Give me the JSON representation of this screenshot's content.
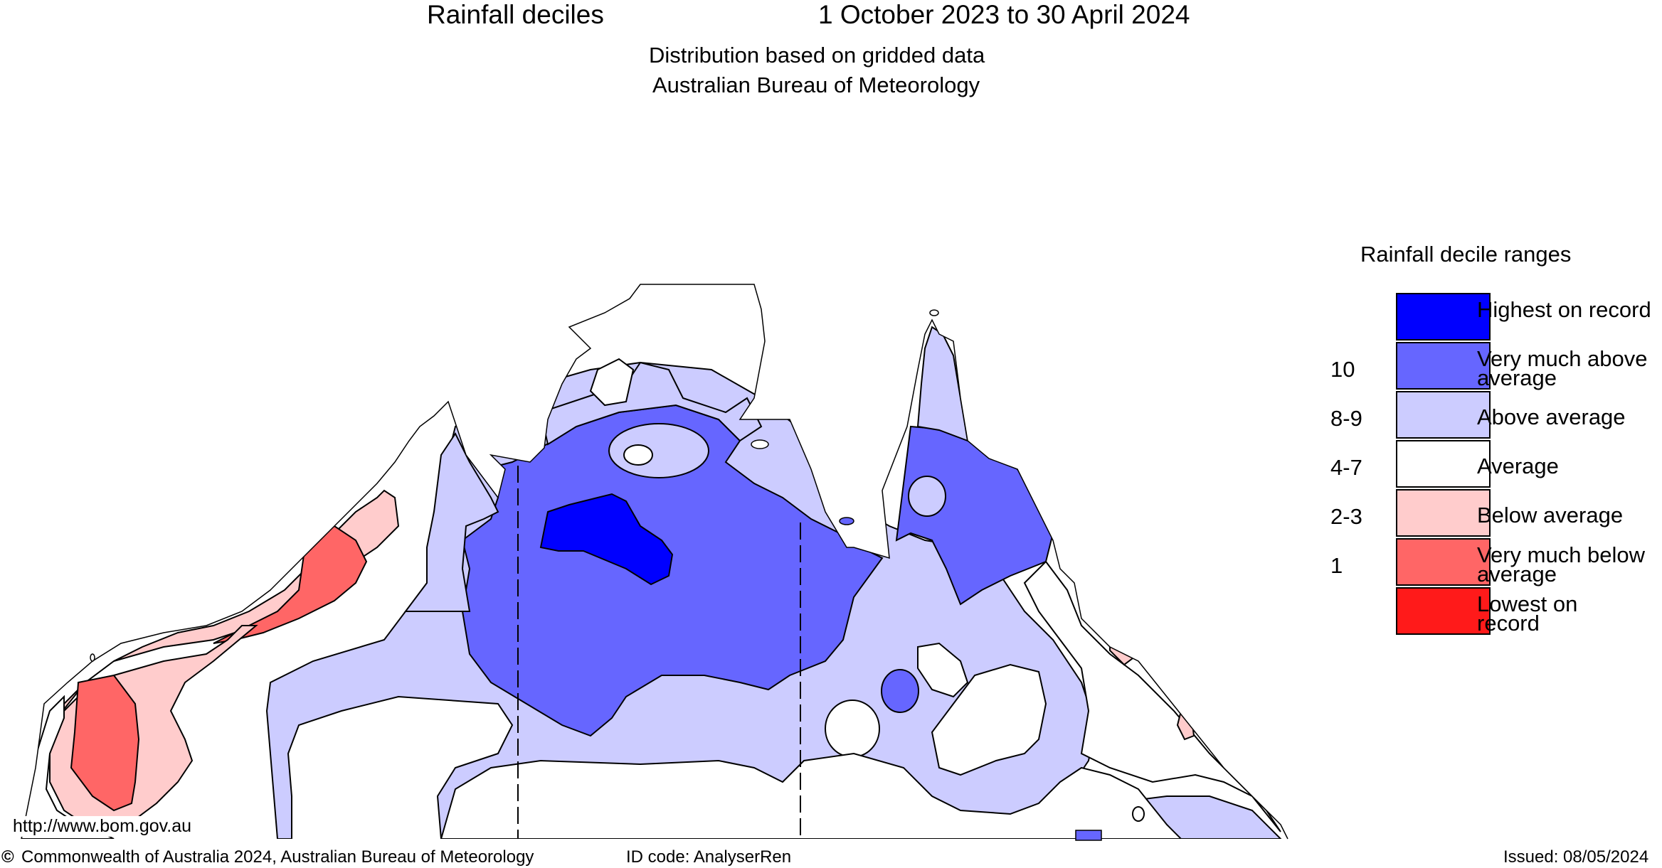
{
  "header": {
    "title_left": "Rainfall deciles",
    "title_right": "1 October 2023 to 30 April 2024",
    "subtitle_line1": "Distribution based on gridded data",
    "subtitle_line2": "Australian Bureau of Meteorology"
  },
  "legend": {
    "title": "Rainfall decile ranges",
    "items": [
      {
        "label": "Highest on record",
        "decile": "",
        "color": "#0000ff"
      },
      {
        "label": "Very much above average",
        "decile": "10",
        "color": "#6666ff"
      },
      {
        "label": "Above average",
        "decile": "8-9",
        "color": "#ccccff"
      },
      {
        "label": "Average",
        "decile": "4-7",
        "color": "#ffffff"
      },
      {
        "label": "Below average",
        "decile": "2-3",
        "color": "#ffcccc"
      },
      {
        "label": "Very much below average",
        "decile": "1",
        "color": "#ff6666"
      },
      {
        "label": "Lowest on record",
        "decile": "",
        "color": "#ff1a1a"
      }
    ]
  },
  "map": {
    "url_text": "http://www.bom.gov.au"
  },
  "footer": {
    "copyright_symbol": "©",
    "copyright_text": "Commonwealth of Australia 2024, Australian Bureau of Meteorology",
    "id_code": "ID code: AnalyserRen",
    "issued": "Issued: 08/05/2024"
  }
}
